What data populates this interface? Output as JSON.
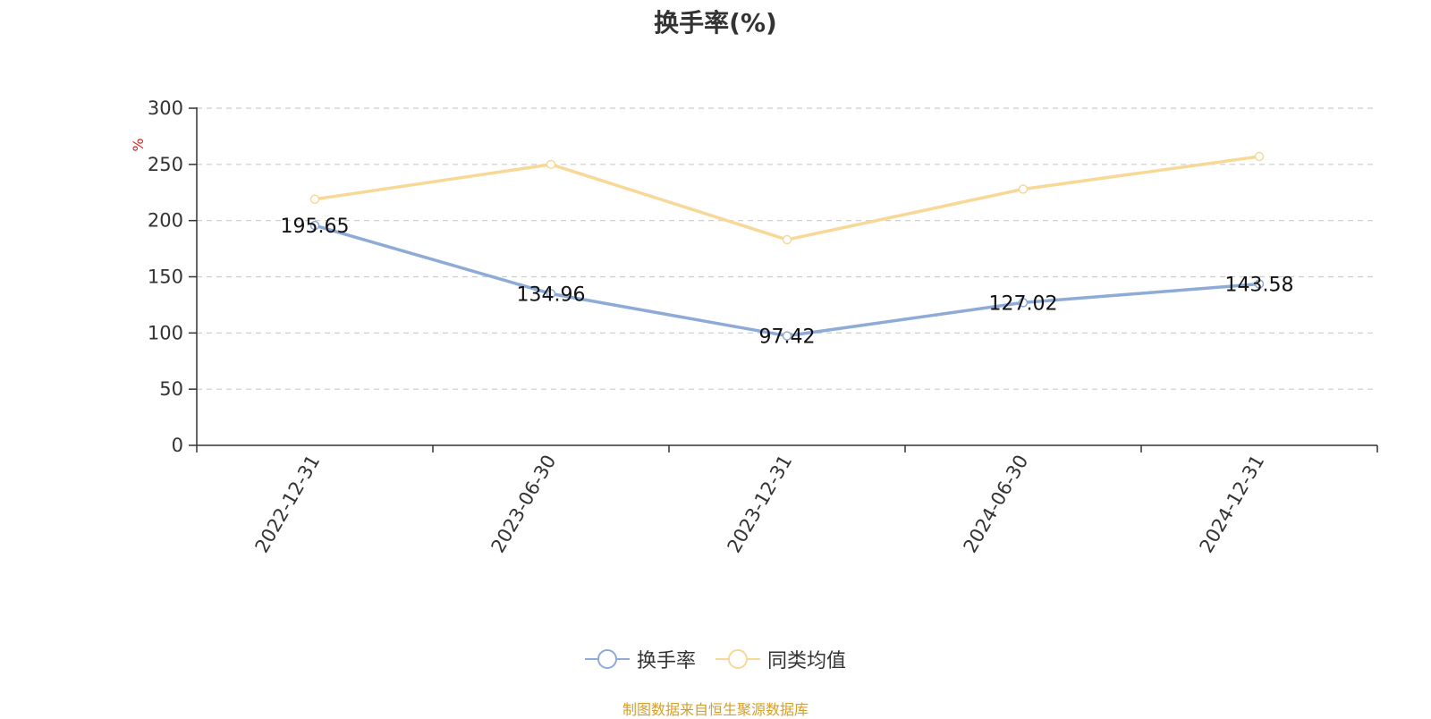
{
  "chart_data": {
    "type": "line",
    "title": "换手率(%)",
    "ylabel": "%",
    "xlabel": "",
    "ylim": [
      0,
      300
    ],
    "yticks": [
      0,
      50,
      100,
      150,
      200,
      250,
      300
    ],
    "categories": [
      "2022-12-31",
      "2023-06-30",
      "2023-12-31",
      "2024-06-30",
      "2024-12-31"
    ],
    "grid": true,
    "legend_position": "bottom-center",
    "series": [
      {
        "name": "换手率",
        "color": "#8eaad6",
        "values": [
          195.65,
          134.96,
          97.42,
          127.02,
          143.58
        ],
        "labels": [
          "195.65",
          "134.96",
          "97.42",
          "127.02",
          "143.58"
        ]
      },
      {
        "name": "同类均值",
        "color": "#f8d897",
        "values": [
          219,
          250,
          183,
          228,
          257
        ]
      }
    ]
  },
  "source": {
    "text": "制图数据来自恒生聚源数据库",
    "color": "#d4a02a"
  },
  "colors": {
    "axis": "#333333",
    "grid": "#cccccc",
    "unit": "#e02020"
  }
}
